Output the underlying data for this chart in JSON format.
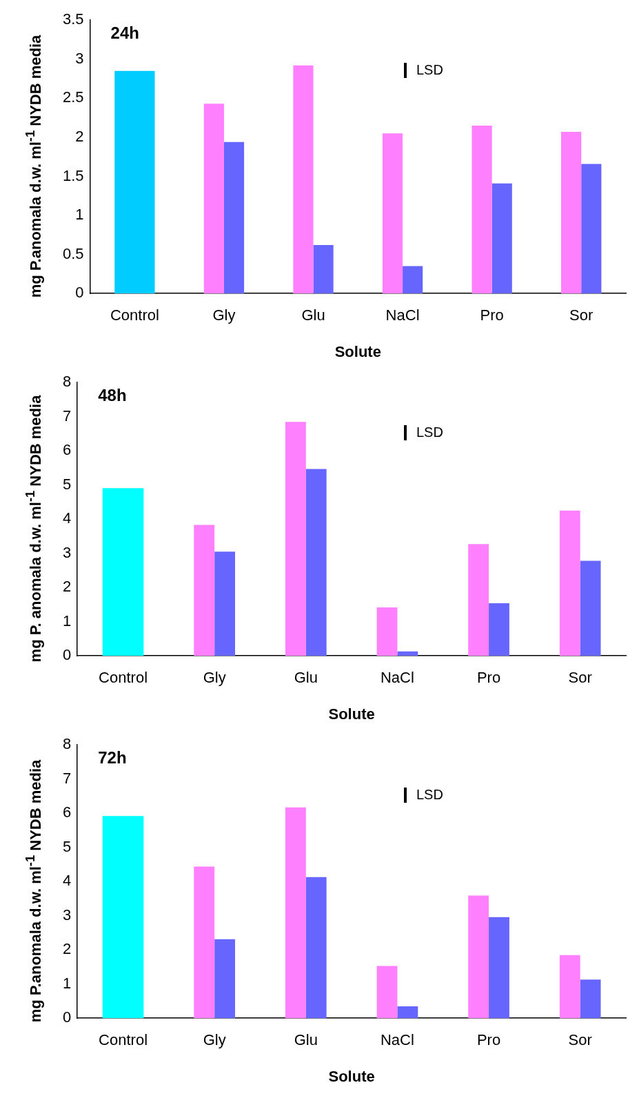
{
  "chart_data": [
    {
      "type": "bar",
      "title": "24h",
      "xlabel": "Solute",
      "ylabel": "mg P.anomala d.w. ml$^{-1}$ NYDB media",
      "categories": [
        "Control",
        "Gly",
        "Glu",
        "NaCl",
        "Pro",
        "Sor"
      ],
      "series": [
        {
          "color": "#00ccff",
          "values": [
            2.85,
            null,
            null,
            null,
            null,
            null
          ]
        },
        {
          "color": "#ff80ff",
          "values": [
            null,
            2.43,
            2.92,
            2.05,
            2.15,
            2.07
          ]
        },
        {
          "color": "#6666ff",
          "values": [
            null,
            1.94,
            0.62,
            0.35,
            1.41,
            1.66
          ]
        }
      ],
      "ylim": [
        0,
        3.5
      ],
      "yticks": [
        0,
        0.5,
        1,
        1.5,
        2,
        2.5,
        3,
        3.5
      ],
      "grid": false,
      "legend": false,
      "annotations": [
        "LSD"
      ]
    },
    {
      "type": "bar",
      "title": "48h",
      "xlabel": "Solute",
      "ylabel": "mg P. anomala d.w. ml$^{-1}$ NYDB media",
      "categories": [
        "Control",
        "Gly",
        "Glu",
        "NaCl",
        "Pro",
        "Sor"
      ],
      "series": [
        {
          "color": "#00ffff",
          "values": [
            4.91,
            null,
            null,
            null,
            null,
            null
          ]
        },
        {
          "color": "#ff80ff",
          "values": [
            null,
            3.83,
            6.85,
            1.42,
            3.27,
            4.25
          ]
        },
        {
          "color": "#6666ff",
          "values": [
            null,
            3.05,
            5.47,
            0.13,
            1.54,
            2.78
          ]
        }
      ],
      "ylim": [
        0,
        8
      ],
      "yticks": [
        0,
        1,
        2,
        3,
        4,
        5,
        6,
        7,
        8
      ],
      "grid": false,
      "legend": false,
      "annotations": [
        "LSD"
      ]
    },
    {
      "type": "bar",
      "title": "72h",
      "xlabel": "Solute",
      "ylabel": "mg P.anomala d.w. ml$^{-1}$ NYDB media",
      "categories": [
        "Control",
        "Gly",
        "Glu",
        "NaCl",
        "Pro",
        "Sor"
      ],
      "series": [
        {
          "color": "#00ffff",
          "values": [
            5.92,
            null,
            null,
            null,
            null,
            null
          ]
        },
        {
          "color": "#ff80ff",
          "values": [
            null,
            4.44,
            6.17,
            1.53,
            3.59,
            1.85
          ]
        },
        {
          "color": "#6666ff",
          "values": [
            null,
            2.31,
            4.13,
            0.35,
            2.96,
            1.13
          ]
        }
      ],
      "ylim": [
        0,
        8
      ],
      "yticks": [
        0,
        1,
        2,
        3,
        4,
        5,
        6,
        7,
        8
      ],
      "grid": false,
      "legend": false,
      "annotations": [
        "LSD"
      ]
    }
  ]
}
